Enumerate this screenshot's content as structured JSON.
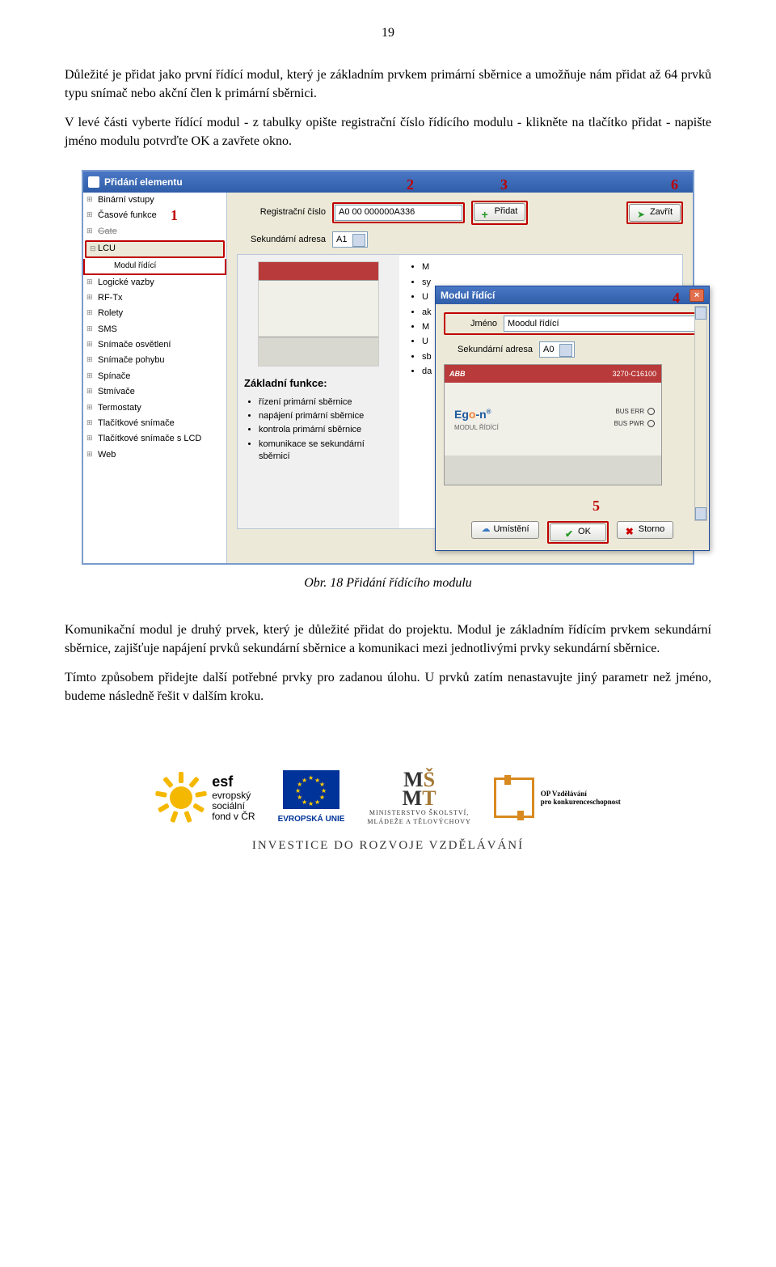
{
  "page_number": "19",
  "para1": "Důležité je přidat jako první řídící modul, který je základním prvkem primární sběrnice a umožňuje nám přidat až 64 prvků typu snímač nebo akční člen k primární sběrnici.",
  "para2": "V levé části vyberte řídící modul - z tabulky opište registrační číslo řídícího modulu - klikněte na tlačítko přidat - napište jméno modulu potvrďte OK a zavřete okno.",
  "screenshot": {
    "title": "Přidání elementu",
    "tree_items": [
      "Binární vstupy",
      "Časové funkce",
      "Gate",
      "LCU",
      "Modul řídící",
      "Logické vazby",
      "RF-Tx",
      "Rolety",
      "SMS",
      "Snímače osvětlení",
      "Snímače pohybu",
      "Spínače",
      "Stmívače",
      "Termostaty",
      "Tlačítkové snímače",
      "Tlačítkové snímače s LCD",
      "Web"
    ],
    "reg_label": "Registrační číslo",
    "reg_value": "A0 00 000000A336",
    "sek_label": "Sekundární adresa",
    "sek_value": "A1",
    "btn_add": "Přidat",
    "btn_close": "Zavřít",
    "basic_heading": "Základní funkce:",
    "basic_items": [
      "řízení primární sběrnice",
      "napájení primární sběrnice",
      "kontrola primární sběrnice",
      "komunikace se sekundární sběrnicí"
    ],
    "modal": {
      "title": "Modul řídící",
      "name_label": "Jméno",
      "name_value": "Moodul řídící",
      "sek_label": "Sekundární adresa",
      "sek_value": "A0",
      "abb": "ABB",
      "code": "3270-C16100",
      "led1": "BUS ERR",
      "led2": "BUS PWR",
      "brand": "Ego-n",
      "brand_sub": "MODUL ŘÍDÍCÍ",
      "btn_place": "Umístění",
      "btn_ok": "OK",
      "btn_storno": "Storno"
    },
    "overlays": {
      "n1": "1",
      "n2": "2",
      "n3": "3",
      "n4": "4",
      "n5": "5",
      "n6": "6"
    }
  },
  "caption": "Obr. 18 Přidání řídícího modulu",
  "para3": "Komunikační modul je druhý prvek, který je důležité přidat do projektu. Modul je základním řídícím prvkem sekundární sběrnice, zajišťuje napájení prvků sekundární sběrnice a komunikaci mezi jednotlivými prvky sekundární sběrnice.",
  "para4": "Tímto způsobem přidejte další potřebné prvky pro zadanou úlohu. U prvků zatím nenastavujte jiný parametr než jméno, budeme následně řešit v dalším kroku.",
  "footer": {
    "esf_b": "esf",
    "esf_lines": "evropský\nsociální\nfond v ČR",
    "eu": "EVROPSKÁ UNIE",
    "msmt1": "MINISTERSTVO ŠKOLSTVÍ,",
    "msmt2": "MLÁDEŽE A TĚLOVÝCHOVY",
    "op1": "OP Vzdělávání",
    "op2": "pro konkurenceschopnost",
    "invest": "INVESTICE DO ROZVOJE VZDĚLÁVÁNÍ"
  }
}
